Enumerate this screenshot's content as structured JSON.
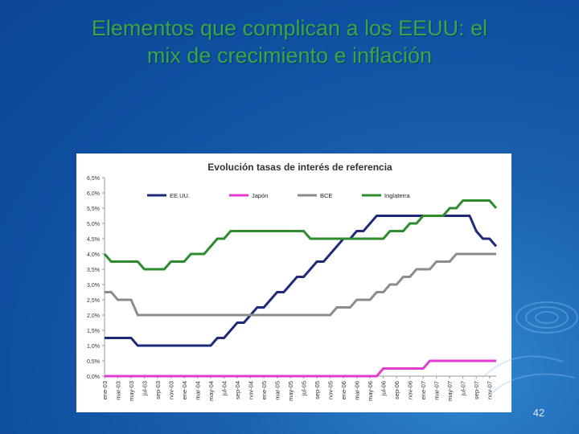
{
  "slide": {
    "title_line1": "Elementos que complican a los EEUU: el",
    "title_line2": "mix de crecimiento e inflación",
    "page_number": "42",
    "colors": {
      "title": "#3aa64a",
      "background": "#1b62b0"
    }
  },
  "chart_data": {
    "type": "line",
    "title": "Evolución tasas de interés de referencia",
    "xlabel": "",
    "ylabel": "",
    "ylim": [
      0,
      6.5
    ],
    "yticks": [
      "0,0%",
      "0,5%",
      "1,0%",
      "1,5%",
      "2,0%",
      "2,5%",
      "3,0%",
      "3,5%",
      "4,0%",
      "4,5%",
      "5,0%",
      "5,5%",
      "6,0%",
      "6,5%"
    ],
    "xticks": [
      "ene-03",
      "mar-03",
      "may-03",
      "jul-03",
      "sep-03",
      "nov-03",
      "ene-04",
      "mar-04",
      "may-04",
      "jul-04",
      "sep-04",
      "nov-04",
      "ene-05",
      "mar-05",
      "may-05",
      "jul-05",
      "sep-05",
      "nov-05",
      "ene-06",
      "mar-06",
      "may-06",
      "jul-06",
      "sep-06",
      "nov-06",
      "ene-07",
      "mar-07",
      "may-07",
      "jul-07",
      "sep-07",
      "nov-07"
    ],
    "x": [
      "ene-03",
      "feb-03",
      "mar-03",
      "abr-03",
      "may-03",
      "jun-03",
      "jul-03",
      "ago-03",
      "sep-03",
      "oct-03",
      "nov-03",
      "dic-03",
      "ene-04",
      "feb-04",
      "mar-04",
      "abr-04",
      "may-04",
      "jun-04",
      "jul-04",
      "ago-04",
      "sep-04",
      "oct-04",
      "nov-04",
      "dic-04",
      "ene-05",
      "feb-05",
      "mar-05",
      "abr-05",
      "may-05",
      "jun-05",
      "jul-05",
      "ago-05",
      "sep-05",
      "oct-05",
      "nov-05",
      "dic-05",
      "ene-06",
      "feb-06",
      "mar-06",
      "abr-06",
      "may-06",
      "jun-06",
      "jul-06",
      "ago-06",
      "sep-06",
      "oct-06",
      "nov-06",
      "dic-06",
      "ene-07",
      "feb-07",
      "mar-07",
      "abr-07",
      "may-07",
      "jun-07",
      "jul-07",
      "ago-07",
      "sep-07",
      "oct-07",
      "nov-07",
      "dic-07"
    ],
    "legend_position": "top",
    "grid": false,
    "series": [
      {
        "name": "EE.UU.",
        "color": "#1f2a7a",
        "values": [
          1.25,
          1.25,
          1.25,
          1.25,
          1.25,
          1.0,
          1.0,
          1.0,
          1.0,
          1.0,
          1.0,
          1.0,
          1.0,
          1.0,
          1.0,
          1.0,
          1.0,
          1.25,
          1.25,
          1.5,
          1.75,
          1.75,
          2.0,
          2.25,
          2.25,
          2.5,
          2.75,
          2.75,
          3.0,
          3.25,
          3.25,
          3.5,
          3.75,
          3.75,
          4.0,
          4.25,
          4.5,
          4.5,
          4.75,
          4.75,
          5.0,
          5.25,
          5.25,
          5.25,
          5.25,
          5.25,
          5.25,
          5.25,
          5.25,
          5.25,
          5.25,
          5.25,
          5.25,
          5.25,
          5.25,
          5.25,
          4.75,
          4.5,
          4.5,
          4.25
        ]
      },
      {
        "name": "Japón",
        "color": "#e23bd3",
        "values": [
          0,
          0,
          0,
          0,
          0,
          0,
          0,
          0,
          0,
          0,
          0,
          0,
          0,
          0,
          0,
          0,
          0,
          0,
          0,
          0,
          0,
          0,
          0,
          0,
          0,
          0,
          0,
          0,
          0,
          0,
          0,
          0,
          0,
          0,
          0,
          0,
          0,
          0,
          0,
          0,
          0,
          0,
          0.25,
          0.25,
          0.25,
          0.25,
          0.25,
          0.25,
          0.25,
          0.5,
          0.5,
          0.5,
          0.5,
          0.5,
          0.5,
          0.5,
          0.5,
          0.5,
          0.5,
          0.5
        ]
      },
      {
        "name": "BCE",
        "color": "#8c8c8c",
        "values": [
          2.75,
          2.75,
          2.5,
          2.5,
          2.5,
          2.0,
          2.0,
          2.0,
          2.0,
          2.0,
          2.0,
          2.0,
          2.0,
          2.0,
          2.0,
          2.0,
          2.0,
          2.0,
          2.0,
          2.0,
          2.0,
          2.0,
          2.0,
          2.0,
          2.0,
          2.0,
          2.0,
          2.0,
          2.0,
          2.0,
          2.0,
          2.0,
          2.0,
          2.0,
          2.0,
          2.25,
          2.25,
          2.25,
          2.5,
          2.5,
          2.5,
          2.75,
          2.75,
          3.0,
          3.0,
          3.25,
          3.25,
          3.5,
          3.5,
          3.5,
          3.75,
          3.75,
          3.75,
          4.0,
          4.0,
          4.0,
          4.0,
          4.0,
          4.0,
          4.0
        ]
      },
      {
        "name": "Inglaterra",
        "color": "#2e8b2e",
        "values": [
          4.0,
          3.75,
          3.75,
          3.75,
          3.75,
          3.75,
          3.5,
          3.5,
          3.5,
          3.5,
          3.75,
          3.75,
          3.75,
          4.0,
          4.0,
          4.0,
          4.25,
          4.5,
          4.5,
          4.75,
          4.75,
          4.75,
          4.75,
          4.75,
          4.75,
          4.75,
          4.75,
          4.75,
          4.75,
          4.75,
          4.75,
          4.5,
          4.5,
          4.5,
          4.5,
          4.5,
          4.5,
          4.5,
          4.5,
          4.5,
          4.5,
          4.5,
          4.5,
          4.75,
          4.75,
          4.75,
          5.0,
          5.0,
          5.25,
          5.25,
          5.25,
          5.25,
          5.5,
          5.5,
          5.75,
          5.75,
          5.75,
          5.75,
          5.75,
          5.5
        ]
      }
    ]
  }
}
